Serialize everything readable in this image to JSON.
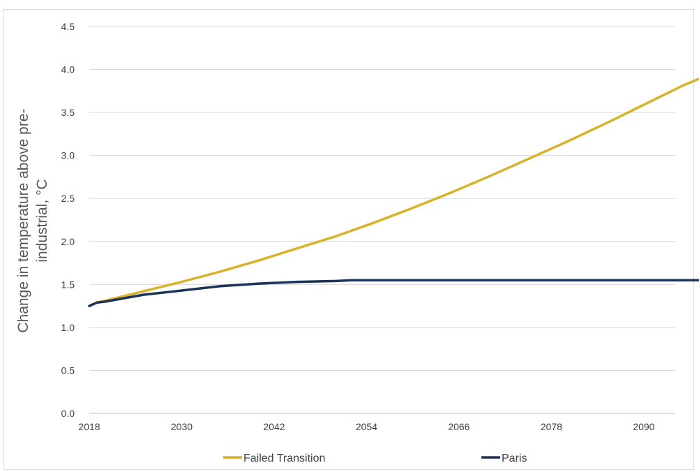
{
  "chart_data": {
    "type": "line",
    "ylabel_line1": "Change in temperature above pre-",
    "ylabel_line2": "industrial,  °C",
    "xlabel": "",
    "ylim": [
      0,
      4.5
    ],
    "y_ticks": [
      "0.0",
      "0.5",
      "1.0",
      "1.5",
      "2.0",
      "2.5",
      "3.0",
      "3.5",
      "4.0",
      "4.5"
    ],
    "x_range": [
      2018,
      2100
    ],
    "x_ticks": [
      "2018",
      "2030",
      "2042",
      "2054",
      "2066",
      "2078",
      "2090"
    ],
    "grid": true,
    "legend_position": "bottom",
    "series": [
      {
        "name": "Failed Transition",
        "color": "#d9b22b",
        "x": [
          2018,
          2019,
          2020,
          2025,
          2030,
          2035,
          2040,
          2045,
          2050,
          2055,
          2060,
          2065,
          2070,
          2075,
          2080,
          2085,
          2090,
          2095,
          2100
        ],
        "y": [
          1.25,
          1.29,
          1.31,
          1.42,
          1.53,
          1.65,
          1.78,
          1.92,
          2.06,
          2.22,
          2.39,
          2.57,
          2.76,
          2.96,
          3.16,
          3.37,
          3.59,
          3.81,
          4.0
        ]
      },
      {
        "name": "Paris",
        "color": "#1b3358",
        "x": [
          2018,
          2019,
          2020,
          2025,
          2030,
          2035,
          2040,
          2045,
          2050,
          2052,
          2060,
          2070,
          2080,
          2090,
          2100
        ],
        "y": [
          1.25,
          1.29,
          1.3,
          1.38,
          1.43,
          1.48,
          1.51,
          1.53,
          1.54,
          1.55,
          1.55,
          1.55,
          1.55,
          1.55,
          1.55
        ]
      }
    ]
  }
}
